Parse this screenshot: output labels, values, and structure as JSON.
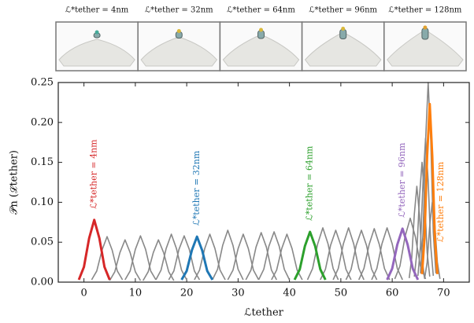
{
  "inset_panels": [
    {
      "label": "ℒ*tether = 4nm"
    },
    {
      "label": "ℒ*tether = 32nm"
    },
    {
      "label": "ℒ*tether = 64nm"
    },
    {
      "label": "ℒ*tether = 96nm"
    },
    {
      "label": "ℒ*tether = 128nm"
    }
  ],
  "chart_data": {
    "type": "line",
    "xlabel": "ℒtether",
    "ylabel": "𝒫n (ℒtether)",
    "xlim": [
      -5,
      75
    ],
    "ylim": [
      0,
      0.25
    ],
    "xticks": [
      0,
      10,
      20,
      30,
      40,
      50,
      60,
      70
    ],
    "yticks": [
      {
        "value": 0,
        "label": "0.00"
      },
      0.05,
      {
        "value": 0.1,
        "label": "0.10"
      },
      0.15,
      {
        "value": 0.2,
        "label": "0.20"
      },
      0.25
    ],
    "series": [
      {
        "color": "#888888",
        "x": [
          1.5,
          2.5,
          3.5,
          4.5,
          5.5,
          6.5,
          7.5
        ],
        "values": [
          0.003,
          0.014,
          0.04,
          0.057,
          0.04,
          0.014,
          0.003
        ]
      },
      {
        "color": "#888888",
        "x": [
          5,
          6,
          7,
          8,
          9,
          10,
          11
        ],
        "values": [
          0.002,
          0.013,
          0.037,
          0.053,
          0.037,
          0.013,
          0.002
        ]
      },
      {
        "color": "#888888",
        "x": [
          8,
          9,
          10,
          11,
          12,
          13,
          14
        ],
        "values": [
          0.003,
          0.014,
          0.041,
          0.058,
          0.041,
          0.014,
          0.003
        ]
      },
      {
        "color": "#888888",
        "x": [
          11.5,
          12.5,
          13.5,
          14.5,
          15.5,
          16.5,
          17.5
        ],
        "values": [
          0.002,
          0.013,
          0.037,
          0.053,
          0.037,
          0.013,
          0.002
        ]
      },
      {
        "color": "#888888",
        "x": [
          14,
          15,
          16,
          17,
          18,
          19,
          20
        ],
        "values": [
          0.003,
          0.015,
          0.042,
          0.06,
          0.042,
          0.015,
          0.003
        ]
      },
      {
        "color": "#888888",
        "x": [
          16.5,
          17.5,
          18.5,
          19.5,
          20.5,
          21.5,
          22.5
        ],
        "values": [
          0.003,
          0.014,
          0.041,
          0.058,
          0.041,
          0.014,
          0.003
        ]
      },
      {
        "color": "#888888",
        "x": [
          21.5,
          22.5,
          23.5,
          24.5,
          25.5,
          26.5,
          27.5
        ],
        "values": [
          0.003,
          0.015,
          0.042,
          0.06,
          0.042,
          0.015,
          0.003
        ]
      },
      {
        "color": "#888888",
        "x": [
          25,
          26,
          27,
          28,
          29,
          30,
          31
        ],
        "values": [
          0.003,
          0.016,
          0.046,
          0.065,
          0.046,
          0.016,
          0.003
        ]
      },
      {
        "color": "#888888",
        "x": [
          28,
          29,
          30,
          31,
          32,
          33,
          34
        ],
        "values": [
          0.003,
          0.015,
          0.042,
          0.06,
          0.042,
          0.015,
          0.003
        ]
      },
      {
        "color": "#888888",
        "x": [
          31.5,
          32.5,
          33.5,
          34.5,
          35.5,
          36.5,
          37.5
        ],
        "values": [
          0.003,
          0.015,
          0.044,
          0.062,
          0.044,
          0.015,
          0.003
        ]
      },
      {
        "color": "#888888",
        "x": [
          34,
          35,
          36,
          37,
          38,
          39,
          40
        ],
        "values": [
          0.003,
          0.016,
          0.045,
          0.063,
          0.045,
          0.016,
          0.003
        ]
      },
      {
        "color": "#888888",
        "x": [
          36.5,
          37.5,
          38.5,
          39.5,
          40.5,
          41.5,
          42.5
        ],
        "values": [
          0.003,
          0.015,
          0.042,
          0.06,
          0.042,
          0.015,
          0.003
        ]
      },
      {
        "color": "#888888",
        "x": [
          43.5,
          44.5,
          45.5,
          46.5,
          47.5,
          48.5,
          49.5
        ],
        "values": [
          0.003,
          0.017,
          0.048,
          0.068,
          0.048,
          0.017,
          0.003
        ]
      },
      {
        "color": "#888888",
        "x": [
          46,
          47,
          48,
          49,
          50,
          51,
          52
        ],
        "values": [
          0.003,
          0.016,
          0.046,
          0.065,
          0.046,
          0.016,
          0.003
        ]
      },
      {
        "color": "#888888",
        "x": [
          48.5,
          49.5,
          50.5,
          51.5,
          52.5,
          53.5,
          54.5
        ],
        "values": [
          0.003,
          0.017,
          0.048,
          0.068,
          0.048,
          0.017,
          0.003
        ]
      },
      {
        "color": "#888888",
        "x": [
          51,
          52,
          53,
          54,
          55,
          56,
          57
        ],
        "values": [
          0.003,
          0.016,
          0.046,
          0.065,
          0.046,
          0.016,
          0.003
        ]
      },
      {
        "color": "#888888",
        "x": [
          53.5,
          54.5,
          55.5,
          56.5,
          57.5,
          58.5,
          59.5
        ],
        "values": [
          0.003,
          0.017,
          0.047,
          0.067,
          0.047,
          0.017,
          0.003
        ]
      },
      {
        "color": "#888888",
        "x": [
          56,
          57,
          58,
          59,
          60,
          61,
          62
        ],
        "values": [
          0.003,
          0.017,
          0.048,
          0.068,
          0.048,
          0.017,
          0.003
        ]
      },
      {
        "color": "#888888",
        "x": [
          60.5,
          61.5,
          62.5,
          63.5,
          64.5,
          65.5,
          66.5
        ],
        "values": [
          0.004,
          0.02,
          0.057,
          0.08,
          0.057,
          0.02,
          0.004
        ]
      },
      {
        "color": "#888888",
        "x": [
          63.3,
          63.8,
          64.3,
          64.8,
          65.3,
          65.8,
          66.3
        ],
        "values": [
          0.005,
          0.03,
          0.085,
          0.12,
          0.085,
          0.03,
          0.005
        ]
      },
      {
        "color": "#888888",
        "x": [
          64.3,
          64.8,
          65.3,
          65.8,
          66.3,
          66.8,
          67.3
        ],
        "values": [
          0.007,
          0.037,
          0.106,
          0.15,
          0.106,
          0.037,
          0.007
        ]
      },
      {
        "color": "#888888",
        "x": [
          65,
          65.5,
          66,
          66.5,
          67,
          67.5,
          68
        ],
        "values": [
          0.008,
          0.045,
          0.127,
          0.18,
          0.127,
          0.045,
          0.008
        ]
      },
      {
        "color": "#888888",
        "x": [
          65.5,
          66,
          66.5,
          67,
          67.5,
          68,
          68.5
        ],
        "values": [
          0.011,
          0.062,
          0.177,
          0.25,
          0.177,
          0.062,
          0.011
        ]
      },
      {
        "color": "#888888",
        "x": [
          66.3,
          66.8,
          67.3,
          67.8,
          68.3,
          68.8,
          69.3
        ],
        "values": [
          0.004,
          0.025,
          0.071,
          0.1,
          0.071,
          0.025,
          0.004
        ]
      },
      {
        "name": "ℒ*tether = 4nm",
        "color": "#d62728",
        "x": [
          -1,
          0,
          1,
          2,
          3,
          4,
          5
        ],
        "values": [
          0.003,
          0.019,
          0.055,
          0.078,
          0.055,
          0.019,
          0.003
        ]
      },
      {
        "name": "ℒ*tether = 32nm",
        "color": "#1f77b4",
        "x": [
          19,
          20,
          21,
          22,
          23,
          24,
          25
        ],
        "values": [
          0.003,
          0.014,
          0.04,
          0.057,
          0.04,
          0.014,
          0.003
        ]
      },
      {
        "name": "ℒ*tether = 64nm",
        "color": "#2ca02c",
        "x": [
          41,
          42,
          43,
          44,
          45,
          46,
          47
        ],
        "values": [
          0.003,
          0.016,
          0.045,
          0.063,
          0.045,
          0.016,
          0.003
        ]
      },
      {
        "name": "ℒ*tether = 96nm",
        "color": "#9467bd",
        "x": [
          59,
          60,
          61,
          62,
          63,
          64,
          65
        ],
        "values": [
          0.003,
          0.017,
          0.047,
          0.067,
          0.047,
          0.017,
          0.003
        ]
      },
      {
        "name": "ℒ*tether = 128nm",
        "color": "#ff7f0e",
        "x": [
          65.8,
          66.3,
          66.8,
          67.3,
          67.8,
          68.3,
          68.8
        ],
        "values": [
          0.01,
          0.056,
          0.158,
          0.223,
          0.158,
          0.056,
          0.01
        ]
      }
    ]
  }
}
